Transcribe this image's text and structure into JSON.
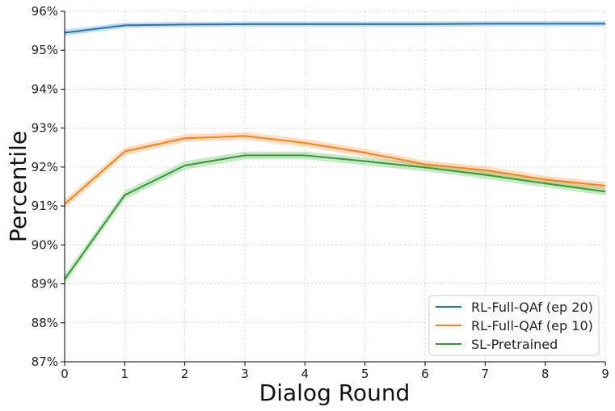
{
  "chart_data": {
    "type": "line",
    "title": "",
    "xlabel": "Dialog Round",
    "ylabel": "Percentile",
    "x": [
      0,
      1,
      2,
      3,
      4,
      5,
      6,
      7,
      8,
      9
    ],
    "xlim": [
      0,
      9
    ],
    "ylim": [
      87,
      96
    ],
    "yticks": [
      87,
      88,
      89,
      90,
      91,
      92,
      93,
      94,
      95,
      96
    ],
    "ytick_labels": [
      "87%",
      "88%",
      "89%",
      "90%",
      "91%",
      "92%",
      "93%",
      "94%",
      "95%",
      "96%"
    ],
    "xtick_labels": [
      "0",
      "1",
      "2",
      "3",
      "4",
      "5",
      "6",
      "7",
      "8",
      "9"
    ],
    "grid": true,
    "legend_position": "bottom-right",
    "series": [
      {
        "name": "RL-Full-QAf (ep 20)",
        "color": "#1f77b4",
        "values": [
          95.45,
          95.64,
          95.66,
          95.67,
          95.67,
          95.67,
          95.67,
          95.68,
          95.68,
          95.68
        ],
        "band": [
          0.08,
          0.07,
          0.07,
          0.07,
          0.07,
          0.07,
          0.07,
          0.07,
          0.07,
          0.07
        ]
      },
      {
        "name": "RL-Full-QAf (ep 10)",
        "color": "#ff7f0e",
        "values": [
          91.05,
          92.4,
          92.74,
          92.8,
          92.62,
          92.37,
          92.07,
          91.92,
          91.68,
          91.52
        ],
        "band": [
          0.12,
          0.1,
          0.1,
          0.1,
          0.1,
          0.1,
          0.1,
          0.1,
          0.1,
          0.1
        ]
      },
      {
        "name": "SL-Pretrained",
        "color": "#2ca02c",
        "values": [
          89.12,
          91.28,
          92.04,
          92.3,
          92.3,
          92.15,
          91.99,
          91.8,
          91.58,
          91.37
        ],
        "band": [
          0.12,
          0.11,
          0.11,
          0.1,
          0.1,
          0.1,
          0.1,
          0.1,
          0.1,
          0.1
        ]
      }
    ]
  }
}
